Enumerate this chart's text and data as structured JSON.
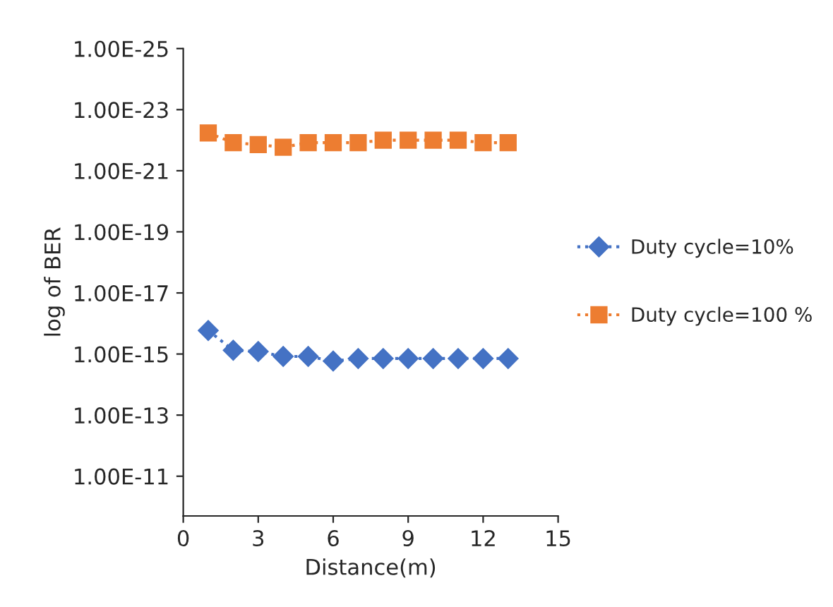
{
  "chart_data": {
    "type": "line",
    "xlabel": "Distance(m)",
    "ylabel": "log of BER",
    "x": [
      1,
      2,
      3,
      4,
      5,
      6,
      7,
      8,
      9,
      10,
      11,
      12,
      13
    ],
    "series": [
      {
        "name": "Duty cycle=10%",
        "color": "#4472c4",
        "marker": "diamond",
        "values": [
          1.7e-16,
          7.5e-16,
          8.3e-16,
          1.2e-15,
          1.2e-15,
          1.7e-15,
          1.4e-15,
          1.4e-15,
          1.4e-15,
          1.4e-15,
          1.4e-15,
          1.4e-15,
          1.4e-15
        ]
      },
      {
        "name": "Duty cycle=100 %",
        "color": "#ed7d31",
        "marker": "square",
        "values": [
          5.8e-23,
          1.2e-22,
          1.4e-22,
          1.7e-22,
          1.2e-22,
          1.2e-22,
          1.2e-22,
          1e-22,
          1e-22,
          1e-22,
          1e-22,
          1.2e-22,
          1.2e-22
        ]
      }
    ],
    "log": true,
    "line_style": "dotted",
    "xlim": [
      0,
      15
    ],
    "xticks": [
      0,
      3,
      6,
      9,
      12,
      15
    ],
    "ylim": [
      2e-10,
      1e-25
    ],
    "yticks": [
      {
        "value": 1e-25,
        "label": "1.00E-25"
      },
      {
        "value": 1e-23,
        "label": "1.00E-23"
      },
      {
        "value": 1e-21,
        "label": "1.00E-21"
      },
      {
        "value": 1e-19,
        "label": "1.00E-19"
      },
      {
        "value": 1e-17,
        "label": "1.00E-17"
      },
      {
        "value": 1e-15,
        "label": "1.00E-15"
      },
      {
        "value": 1e-13,
        "label": "1.00E-13"
      },
      {
        "value": 1e-11,
        "label": "1.00E-11"
      }
    ],
    "grid": false,
    "legend": "right"
  }
}
